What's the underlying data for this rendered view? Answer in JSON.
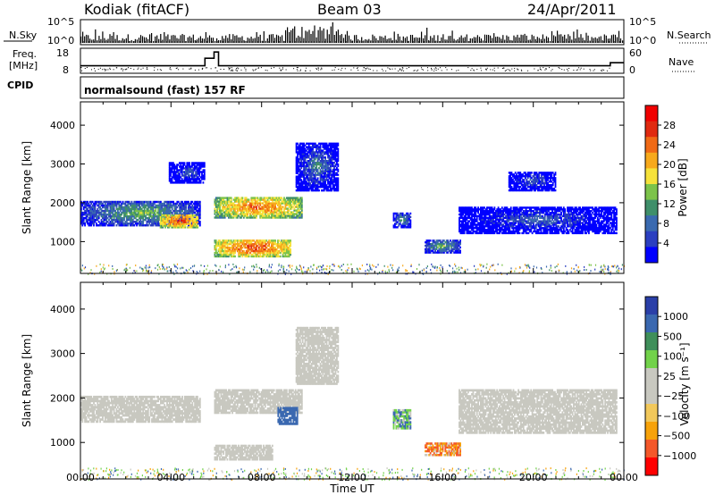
{
  "header": {
    "station": "Kodiak (fitACF)",
    "beam": "Beam 03",
    "date": "24/Apr/2011"
  },
  "panels": {
    "nsky": {
      "label": "N.Sky",
      "ticks": [
        "10^5",
        "10^0"
      ],
      "right_label": "N.Search",
      "right_ticks": [
        "10^5",
        "10^0"
      ]
    },
    "freq": {
      "label_line1": "Freq.",
      "label_line2": "[MHz]",
      "ticks": [
        "18",
        "8"
      ],
      "right_label": "Nave",
      "right_ticks": [
        "60",
        "0"
      ]
    },
    "cpid": {
      "label": "CPID",
      "mode": "normalsound (fast) 157 RF"
    }
  },
  "colors": {
    "power": [
      "#0000ff",
      "#2b3fc0",
      "#3a6ab0",
      "#3f8f6a",
      "#7cc34a",
      "#f6e23a",
      "#f7a91c",
      "#f06a16",
      "#e02a10",
      "#f00000"
    ],
    "velocity": [
      "#ff0000",
      "#f4582a",
      "#f7a20a",
      "#f2c85b",
      "#c8c8c0",
      "#c8c8c0",
      "#72d24a",
      "#3f8f5a",
      "#3a68b0",
      "#2a3fa8"
    ]
  },
  "chart_data": [
    {
      "type": "heatmap",
      "title": "Power",
      "xlabel": "",
      "ylabel": "Slant Range [km]",
      "xlim": [
        0,
        24
      ],
      "ylim": [
        180,
        4600
      ],
      "x_ticks": [
        "00:00",
        "04:00",
        "08:00",
        "12:00",
        "16:00",
        "20:00",
        "00:00"
      ],
      "y_ticks": [
        1000,
        2000,
        3000,
        4000
      ],
      "colorbar": {
        "label": "Power [dB]",
        "ticks": [
          "28",
          "24",
          "20",
          "16",
          "12",
          "8",
          "4"
        ]
      },
      "regions": [
        {
          "t": [
            0.0,
            5.3
          ],
          "r": [
            1400,
            2050
          ],
          "level": 12
        },
        {
          "t": [
            3.5,
            5.2
          ],
          "r": [
            1350,
            1700
          ],
          "level": 24
        },
        {
          "t": [
            3.9,
            5.5
          ],
          "r": [
            2500,
            3050
          ],
          "level": 6
        },
        {
          "t": [
            5.9,
            9.8
          ],
          "r": [
            1600,
            2150
          ],
          "level": 22
        },
        {
          "t": [
            5.9,
            9.3
          ],
          "r": [
            600,
            1050
          ],
          "level": 24
        },
        {
          "t": [
            9.5,
            11.4
          ],
          "r": [
            2300,
            3550
          ],
          "level": 8
        },
        {
          "t": [
            13.8,
            14.6
          ],
          "r": [
            1350,
            1750
          ],
          "level": 10
        },
        {
          "t": [
            15.2,
            16.8
          ],
          "r": [
            700,
            1050
          ],
          "level": 12
        },
        {
          "t": [
            16.7,
            23.7
          ],
          "r": [
            1200,
            1900
          ],
          "level": 6
        },
        {
          "t": [
            18.9,
            21.0
          ],
          "r": [
            2300,
            2800
          ],
          "level": 6
        }
      ]
    },
    {
      "type": "heatmap",
      "title": "Velocity",
      "xlabel": "Time UT",
      "ylabel": "Slant Range [km]",
      "xlim": [
        0,
        24
      ],
      "ylim": [
        180,
        4600
      ],
      "x_ticks": [
        "00:00",
        "04:00",
        "08:00",
        "12:00",
        "16:00",
        "20:00",
        "00:00"
      ],
      "y_ticks": [
        1000,
        2000,
        3000,
        4000
      ],
      "colorbar": {
        "label": "Velocity [m s⁻¹]",
        "ticks": [
          "1000",
          "500",
          "100",
          "25",
          "−25",
          "−100",
          "−500",
          "−1000"
        ]
      },
      "regions": [
        {
          "t": [
            0.0,
            5.3
          ],
          "r": [
            1450,
            2050
          ],
          "level": 0
        },
        {
          "t": [
            5.9,
            9.8
          ],
          "r": [
            1650,
            2200
          ],
          "level": 0
        },
        {
          "t": [
            5.9,
            8.5
          ],
          "r": [
            600,
            950
          ],
          "level": 0
        },
        {
          "t": [
            9.5,
            11.4
          ],
          "r": [
            2300,
            3600
          ],
          "level": 0
        },
        {
          "t": [
            8.7,
            9.6
          ],
          "r": [
            1400,
            1800
          ],
          "level": 400
        },
        {
          "t": [
            13.8,
            14.6
          ],
          "r": [
            1300,
            1750
          ],
          "level": 80
        },
        {
          "t": [
            15.2,
            16.8
          ],
          "r": [
            700,
            1000
          ],
          "level": -100
        },
        {
          "t": [
            16.7,
            23.7
          ],
          "r": [
            1200,
            2200
          ],
          "level": 0
        }
      ]
    }
  ]
}
